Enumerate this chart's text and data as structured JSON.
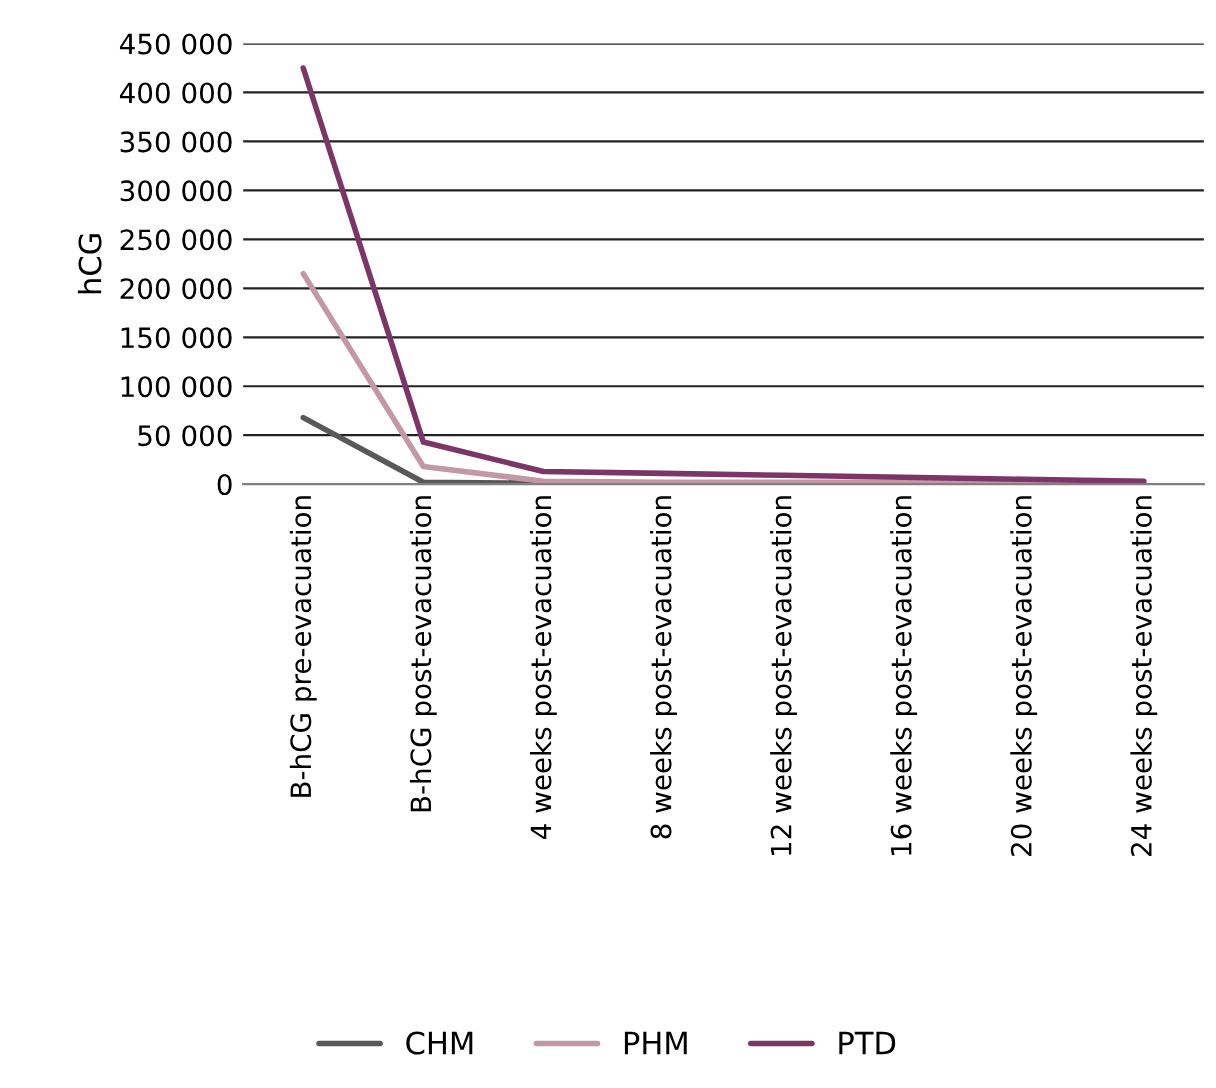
{
  "chart_data": {
    "type": "line",
    "ylabel": "hCG",
    "categories": [
      "B-hCG pre-evacuation",
      "B-hCG post-evacuation",
      "4 weeks post-evacuation",
      "8 weeks post-evacuation",
      "12 weeks post-evacuation",
      "16 weeks post-evacuation",
      "20 weeks post-evacuation",
      "24 weeks post-evacuation"
    ],
    "series": [
      {
        "name": "CHM",
        "color": "#595959",
        "values": [
          68000,
          2000,
          1000,
          null,
          null,
          null,
          null,
          null
        ]
      },
      {
        "name": "PHM",
        "color": "#c497a6",
        "values": [
          215000,
          18000,
          3000,
          2000,
          2000,
          2000,
          1000,
          1000
        ]
      },
      {
        "name": "PTD",
        "color": "#7b3566",
        "values": [
          425000,
          43000,
          13000,
          11000,
          9000,
          7000,
          5000,
          3000
        ]
      }
    ],
    "ylim": [
      0,
      450000
    ],
    "yticks": [
      {
        "value": 0,
        "label": "0"
      },
      {
        "value": 50000,
        "label": "50 000"
      },
      {
        "value": 100000,
        "label": "100 000"
      },
      {
        "value": 150000,
        "label": "150 000"
      },
      {
        "value": 200000,
        "label": "200 000"
      },
      {
        "value": 250000,
        "label": "250 000"
      },
      {
        "value": 300000,
        "label": "300 000"
      },
      {
        "value": 350000,
        "label": "350 000"
      },
      {
        "value": 400000,
        "label": "400 000"
      },
      {
        "value": 450000,
        "label": "450 000"
      }
    ],
    "grid": "y",
    "legend": "bottom",
    "marker": "none",
    "line_style": "solid"
  }
}
